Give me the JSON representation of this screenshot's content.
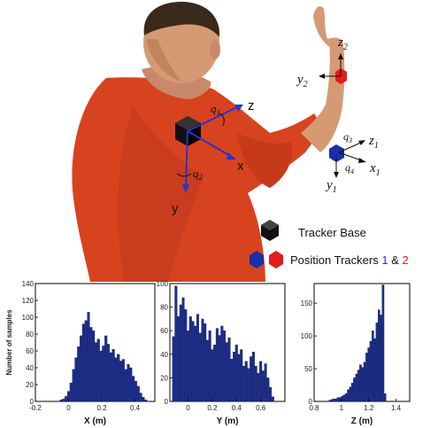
{
  "figure": {
    "labels": {
      "z": "z",
      "x": "x",
      "y": "y",
      "q1_base": "q",
      "q1_sub": "1",
      "q2_base": "q",
      "q2_sub": "2",
      "q3_base": "q",
      "q3_sub": "3",
      "q4_base": "q",
      "q4_sub": "4",
      "z1_base": "z",
      "z1_sub": "1",
      "x1_base": "x",
      "x1_sub": "1",
      "y1_base": "y",
      "y1_sub": "1",
      "z2_base": "z",
      "z2_sub": "2",
      "y2_base": "y",
      "y2_sub": "2"
    },
    "legend": {
      "tracker_base": "Tracker Base",
      "position_trackers": "Position Trackers",
      "num1": "1",
      "amp": "&",
      "num2": "2"
    },
    "colors": {
      "shirt": "#d8431f",
      "skin": "#d59a74",
      "hair": "#3a2a1c",
      "bar_fill": "#1d2f8c",
      "tracker1": "#1a2fa8",
      "tracker2": "#e31b1b",
      "axis_arrow": "#2b32c9",
      "legend_num1": "#2b32c9",
      "legend_num2": "#e31b1b"
    }
  },
  "chart_data": [
    {
      "type": "bar",
      "xlabel": "X (m)",
      "ylabel": "Number of samples",
      "xlim": [
        -0.2,
        0.52
      ],
      "ylim": [
        0,
        140
      ],
      "xticks": [
        "-0.2",
        "0",
        "0.2",
        "0.4"
      ],
      "yticks": [
        "0",
        "20",
        "40",
        "60",
        "80",
        "100",
        "120",
        "140"
      ],
      "bin_width": 0.0148,
      "x": [
        -0.045,
        -0.03,
        -0.015,
        0.0,
        0.015,
        0.03,
        0.045,
        0.06,
        0.075,
        0.09,
        0.105,
        0.12,
        0.135,
        0.15,
        0.165,
        0.18,
        0.195,
        0.21,
        0.225,
        0.24,
        0.255,
        0.27,
        0.285,
        0.3,
        0.315,
        0.33,
        0.345,
        0.36,
        0.375,
        0.39,
        0.405,
        0.42,
        0.435,
        0.45,
        0.465
      ],
      "values": [
        2,
        3,
        6,
        12,
        22,
        38,
        52,
        65,
        78,
        92,
        96,
        106,
        88,
        84,
        70,
        74,
        60,
        66,
        78,
        68,
        58,
        62,
        52,
        56,
        48,
        50,
        38,
        44,
        40,
        30,
        24,
        18,
        10,
        5,
        2
      ]
    },
    {
      "type": "bar",
      "xlabel": "Y (m)",
      "ylabel": "",
      "xlim": [
        -0.15,
        0.8
      ],
      "ylim": [
        0,
        100
      ],
      "xticks": [
        "0",
        "0.2",
        "0.4",
        "0.6"
      ],
      "yticks": [
        "0",
        "20",
        "40",
        "60",
        "80",
        "100"
      ],
      "bin_width": 0.0195,
      "x": [
        -0.12,
        -0.1,
        -0.08,
        -0.06,
        -0.04,
        -0.02,
        0.0,
        0.02,
        0.04,
        0.06,
        0.08,
        0.1,
        0.12,
        0.14,
        0.16,
        0.18,
        0.2,
        0.22,
        0.24,
        0.26,
        0.28,
        0.3,
        0.32,
        0.34,
        0.36,
        0.38,
        0.4,
        0.42,
        0.44,
        0.46,
        0.48,
        0.5,
        0.52,
        0.54,
        0.56,
        0.58,
        0.6,
        0.62,
        0.64,
        0.66,
        0.68,
        0.7
      ],
      "values": [
        55,
        98,
        72,
        82,
        88,
        78,
        60,
        72,
        68,
        64,
        74,
        58,
        70,
        66,
        52,
        60,
        44,
        48,
        62,
        56,
        64,
        60,
        50,
        54,
        36,
        42,
        48,
        40,
        44,
        30,
        34,
        28,
        38,
        42,
        30,
        24,
        34,
        26,
        32,
        20,
        12,
        4
      ]
    },
    {
      "type": "bar",
      "xlabel": "Z (m)",
      "ylabel": "",
      "xlim": [
        0.8,
        1.5
      ],
      "ylim": [
        0,
        180
      ],
      "xticks": [
        "0.8",
        "1",
        "1.2",
        "1.4"
      ],
      "yticks": [
        "0",
        "50",
        "100",
        "150"
      ],
      "bin_width": 0.0148,
      "x": [
        0.915,
        0.93,
        0.945,
        0.96,
        0.975,
        0.99,
        1.005,
        1.02,
        1.035,
        1.05,
        1.065,
        1.08,
        1.095,
        1.11,
        1.125,
        1.14,
        1.155,
        1.17,
        1.185,
        1.2,
        1.215,
        1.23,
        1.245,
        1.26,
        1.275,
        1.29,
        1.305,
        1.32
      ],
      "values": [
        2,
        3,
        4,
        4,
        6,
        6,
        8,
        10,
        12,
        18,
        22,
        28,
        36,
        42,
        48,
        56,
        52,
        60,
        74,
        82,
        92,
        108,
        96,
        120,
        140,
        132,
        178,
        12
      ]
    }
  ]
}
